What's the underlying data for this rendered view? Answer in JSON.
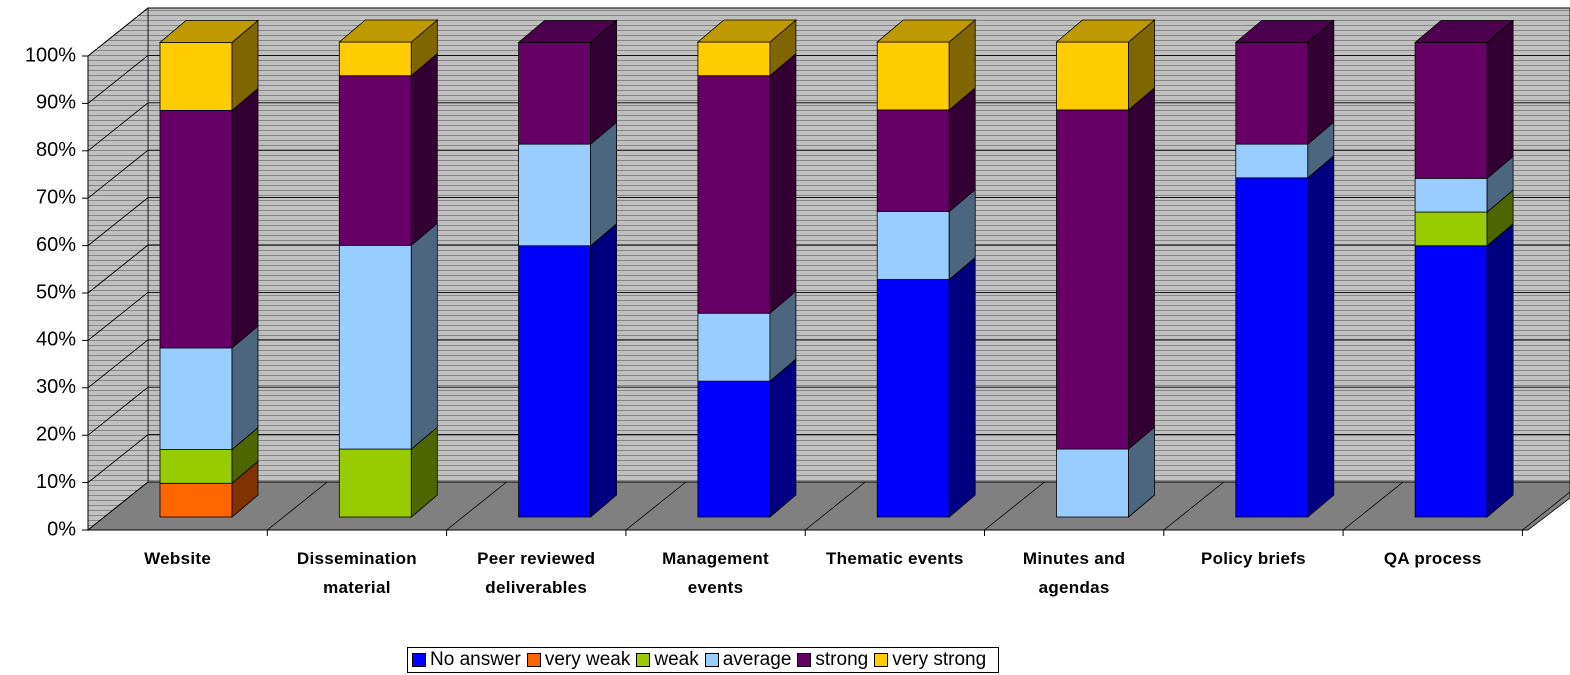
{
  "chart_data": {
    "type": "bar3d-stacked",
    "categories": [
      "Website",
      "Dissemination material",
      "Peer reviewed deliverables",
      "Management events",
      "Thematic events",
      "Minutes and agendas",
      "Policy briefs",
      "QA process"
    ],
    "series": [
      {
        "name": "No answer",
        "color": "#0000ff",
        "values": [
          0,
          0,
          57.1,
          28.6,
          50,
          0,
          71.4,
          57.1
        ]
      },
      {
        "name": "very weak",
        "color": "#ff6600",
        "values": [
          7.1,
          0,
          0,
          0,
          0,
          0,
          0,
          0
        ]
      },
      {
        "name": "weak",
        "color": "#99cc00",
        "values": [
          7.1,
          14.3,
          0,
          0,
          0,
          0,
          0,
          7.1
        ]
      },
      {
        "name": "average",
        "color": "#99ccff",
        "values": [
          21.4,
          42.9,
          21.4,
          14.3,
          14.3,
          14.3,
          7.1,
          7.1
        ]
      },
      {
        "name": "strong",
        "color": "#660066",
        "values": [
          50,
          35.7,
          21.4,
          50,
          21.4,
          71.4,
          21.4,
          28.6
        ]
      },
      {
        "name": "very strong",
        "color": "#ffcc00",
        "values": [
          14.3,
          7.1,
          0,
          7.1,
          14.3,
          14.3,
          0,
          0
        ]
      }
    ],
    "ylim": [
      0,
      100
    ],
    "yticks": [
      {
        "value": 0,
        "label": "0%"
      },
      {
        "value": 10,
        "label": "10%"
      },
      {
        "value": 20,
        "label": "20%"
      },
      {
        "value": 30,
        "label": "30%"
      },
      {
        "value": 40,
        "label": "40%"
      },
      {
        "value": 50,
        "label": "50%"
      },
      {
        "value": 60,
        "label": "60%"
      },
      {
        "value": 70,
        "label": "70%"
      },
      {
        "value": 80,
        "label": "80%"
      },
      {
        "value": 90,
        "label": "90%"
      },
      {
        "value": 100,
        "label": "100%"
      }
    ],
    "grid": true,
    "legend": "bottom"
  }
}
